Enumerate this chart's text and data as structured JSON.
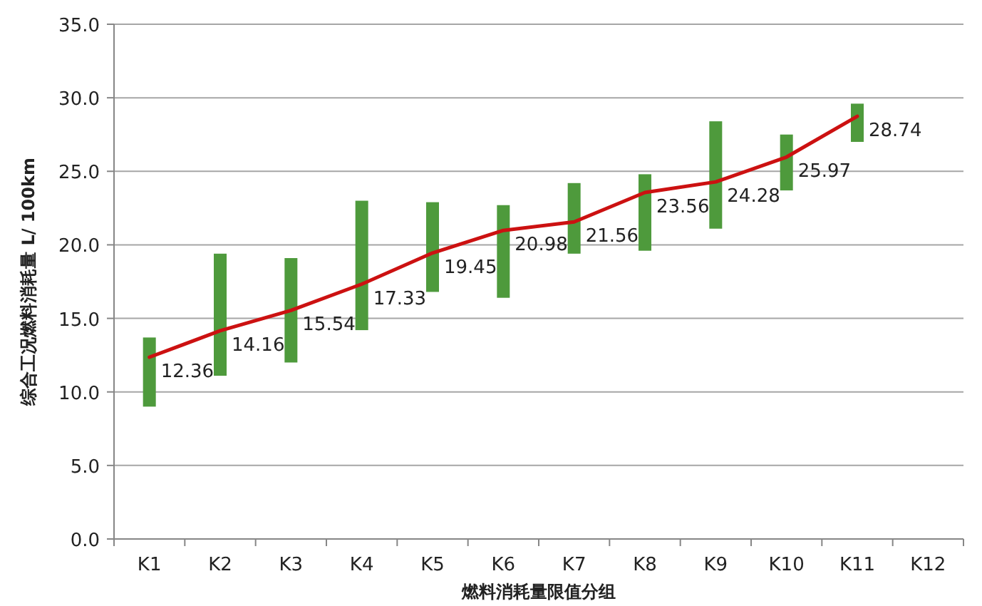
{
  "chart_data": {
    "type": "bar",
    "xlabel": "燃料消耗量限值分组",
    "ylabel": "综合工况燃料消耗量 L/ 100km",
    "categories": [
      "K1",
      "K2",
      "K3",
      "K4",
      "K5",
      "K6",
      "K7",
      "K8",
      "K9",
      "K10",
      "K11",
      "K12"
    ],
    "series": [
      {
        "color": "#4e9a3c",
        "base": [
          9.0,
          11.1,
          12.0,
          14.2,
          16.8,
          16.4,
          19.4,
          19.6,
          21.1,
          23.7,
          27.0,
          null
        ],
        "values": [
          4.7,
          8.3,
          7.1,
          8.8,
          6.1,
          6.3,
          4.8,
          5.2,
          7.3,
          3.8,
          2.6,
          null
        ]
      },
      {
        "type": "line",
        "color": "#cc1111",
        "values": [
          12.36,
          14.16,
          15.54,
          17.33,
          19.45,
          20.98,
          21.56,
          23.56,
          24.28,
          25.97,
          28.74,
          null
        ],
        "value_labels": [
          "12.36",
          "14.16",
          "15.54",
          "17.33",
          "19.45",
          "20.98",
          "21.56",
          "23.56",
          "24.28",
          "25.97",
          "28.74",
          null
        ]
      }
    ],
    "ylim": [
      0,
      35
    ],
    "yticks": [
      {
        "value": 0,
        "label": "0.0"
      },
      {
        "value": 5,
        "label": "5.0"
      },
      {
        "value": 10,
        "label": "10.0"
      },
      {
        "value": 15,
        "label": "15.0"
      },
      {
        "value": 20,
        "label": "20.0"
      },
      {
        "value": 25,
        "label": "25.0"
      },
      {
        "value": 30,
        "label": "30.0"
      },
      {
        "value": 35,
        "label": "35.0"
      }
    ],
    "grid": "y"
  }
}
